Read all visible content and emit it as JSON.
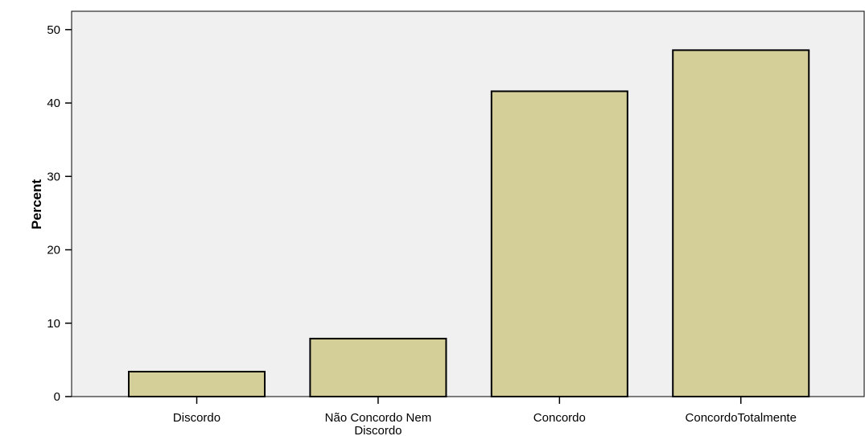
{
  "colors": {
    "plot_background": "#f0f0f0",
    "bar_fill": "#d4cf98",
    "bar_stroke": "#000000"
  },
  "chart_data": {
    "type": "bar",
    "categories": [
      [
        "Discordo"
      ],
      [
        "Não Concordo Nem",
        "Discordo"
      ],
      [
        "Concordo"
      ],
      [
        "ConcordoTotalmente"
      ]
    ],
    "values": [
      3.4,
      7.9,
      41.6,
      47.2
    ],
    "title": "",
    "xlabel": "",
    "ylabel": "Percent",
    "ylim": [
      0,
      52.5
    ],
    "yticks": [
      0,
      10,
      20,
      30,
      40,
      50
    ],
    "grid": false,
    "legend": "none"
  }
}
